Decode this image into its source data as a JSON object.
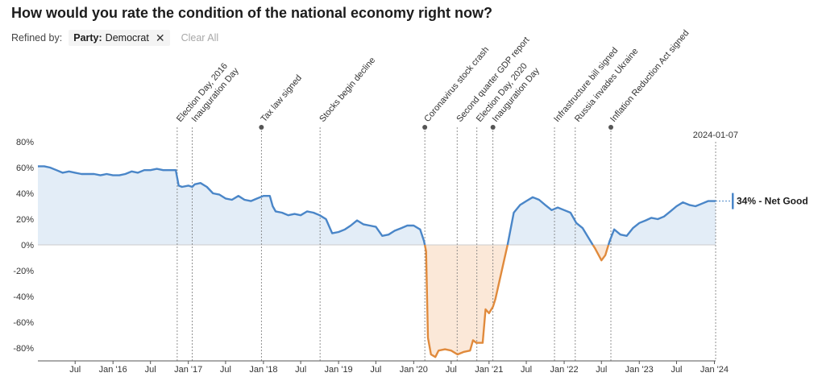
{
  "page": {
    "title": "How would you rate the condition of the national economy right now?",
    "filter": {
      "refined_by_label": "Refined by:",
      "chip_key": "Party:",
      "chip_value": "Democrat",
      "clear_label": "Clear All"
    }
  },
  "chart_data": {
    "type": "area",
    "ylim": [
      -90,
      90
    ],
    "yticks": [
      80,
      60,
      40,
      20,
      0,
      -20,
      -40,
      -60,
      -80
    ],
    "ytick_labels": [
      "80%",
      "60%",
      "40%",
      "20%",
      "0%",
      "-20%",
      "-40%",
      "-60%",
      "-80%"
    ],
    "x_start": "2015-01-01",
    "x_end": "2024-01-07",
    "xticks": [
      {
        "date": "2015-07-01",
        "label": "Jul"
      },
      {
        "date": "2016-01-01",
        "label": "Jan '16"
      },
      {
        "date": "2016-07-01",
        "label": "Jul"
      },
      {
        "date": "2017-01-01",
        "label": "Jan '17"
      },
      {
        "date": "2017-07-01",
        "label": "Jul"
      },
      {
        "date": "2018-01-01",
        "label": "Jan '18"
      },
      {
        "date": "2018-07-01",
        "label": "Jul"
      },
      {
        "date": "2019-01-01",
        "label": "Jan '19"
      },
      {
        "date": "2019-07-01",
        "label": "Jul"
      },
      {
        "date": "2020-01-01",
        "label": "Jan '20"
      },
      {
        "date": "2020-07-01",
        "label": "Jul"
      },
      {
        "date": "2021-01-01",
        "label": "Jan '21"
      },
      {
        "date": "2021-07-01",
        "label": "Jul"
      },
      {
        "date": "2022-01-01",
        "label": "Jan '22"
      },
      {
        "date": "2022-07-01",
        "label": "Jul"
      },
      {
        "date": "2023-01-01",
        "label": "Jan '23"
      },
      {
        "date": "2023-07-01",
        "label": "Jul"
      },
      {
        "date": "2024-01-01",
        "label": "Jan '24"
      }
    ],
    "colors": {
      "positive_line": "#4a86c8",
      "positive_fill": "#e3edf7",
      "negative_line": "#e08a3c",
      "negative_fill": "#fbe8d8",
      "zero_line": "#cccccc",
      "event_line": "#777777"
    },
    "events": [
      {
        "date": "2016-11-08",
        "label": "Election Day, 2016",
        "marker": false
      },
      {
        "date": "2017-01-20",
        "label": "Inauguration Day",
        "marker": false
      },
      {
        "date": "2017-12-22",
        "label": "Tax law signed",
        "marker": true
      },
      {
        "date": "2018-10-03",
        "label": "Stocks begin decline",
        "marker": false
      },
      {
        "date": "2020-02-24",
        "label": "Coronavirus stock crash",
        "marker": true
      },
      {
        "date": "2020-07-30",
        "label": "Second quarter GDP report",
        "marker": false
      },
      {
        "date": "2020-11-03",
        "label": "Election Day, 2020",
        "marker": false
      },
      {
        "date": "2021-01-20",
        "label": "Inauguration Day",
        "marker": true
      },
      {
        "date": "2021-11-15",
        "label": "Infrastructure bill signed",
        "marker": false
      },
      {
        "date": "2022-02-24",
        "label": "Russia invades Ukraine",
        "marker": false
      },
      {
        "date": "2022-08-16",
        "label": "Inflation Reduction Act signed",
        "marker": true
      }
    ],
    "end_marker": {
      "date": "2024-01-07",
      "label": "2024-01-07"
    },
    "callout": {
      "value": 34,
      "label": "34% - Net Good"
    },
    "series": [
      {
        "points": [
          [
            "2015-01-01",
            61
          ],
          [
            "2015-02-01",
            61
          ],
          [
            "2015-03-01",
            60
          ],
          [
            "2015-04-01",
            58
          ],
          [
            "2015-05-01",
            56
          ],
          [
            "2015-06-01",
            57
          ],
          [
            "2015-07-01",
            56
          ],
          [
            "2015-08-01",
            55
          ],
          [
            "2015-09-01",
            55
          ],
          [
            "2015-10-01",
            55
          ],
          [
            "2015-11-01",
            54
          ],
          [
            "2015-12-01",
            55
          ],
          [
            "2016-01-01",
            54
          ],
          [
            "2016-02-01",
            54
          ],
          [
            "2016-03-01",
            55
          ],
          [
            "2016-04-01",
            57
          ],
          [
            "2016-05-01",
            56
          ],
          [
            "2016-06-01",
            58
          ],
          [
            "2016-07-01",
            58
          ],
          [
            "2016-08-01",
            59
          ],
          [
            "2016-09-01",
            58
          ],
          [
            "2016-10-01",
            58
          ],
          [
            "2016-11-01",
            58
          ],
          [
            "2016-11-15",
            46
          ],
          [
            "2016-12-01",
            45
          ],
          [
            "2017-01-01",
            46
          ],
          [
            "2017-01-20",
            45
          ],
          [
            "2017-02-01",
            47
          ],
          [
            "2017-03-01",
            48
          ],
          [
            "2017-04-01",
            45
          ],
          [
            "2017-05-01",
            40
          ],
          [
            "2017-06-01",
            39
          ],
          [
            "2017-07-01",
            36
          ],
          [
            "2017-08-01",
            35
          ],
          [
            "2017-09-01",
            38
          ],
          [
            "2017-10-01",
            35
          ],
          [
            "2017-11-01",
            34
          ],
          [
            "2017-12-01",
            36
          ],
          [
            "2018-01-01",
            38
          ],
          [
            "2018-02-01",
            38
          ],
          [
            "2018-02-15",
            30
          ],
          [
            "2018-03-01",
            26
          ],
          [
            "2018-04-01",
            25
          ],
          [
            "2018-05-01",
            23
          ],
          [
            "2018-06-01",
            24
          ],
          [
            "2018-07-01",
            23
          ],
          [
            "2018-08-01",
            26
          ],
          [
            "2018-09-01",
            25
          ],
          [
            "2018-10-01",
            23
          ],
          [
            "2018-11-01",
            20
          ],
          [
            "2018-12-01",
            9
          ],
          [
            "2019-01-01",
            10
          ],
          [
            "2019-02-01",
            12
          ],
          [
            "2019-03-01",
            15
          ],
          [
            "2019-04-01",
            19
          ],
          [
            "2019-05-01",
            16
          ],
          [
            "2019-06-01",
            15
          ],
          [
            "2019-07-01",
            14
          ],
          [
            "2019-08-01",
            7
          ],
          [
            "2019-09-01",
            8
          ],
          [
            "2019-10-01",
            11
          ],
          [
            "2019-11-01",
            13
          ],
          [
            "2019-12-01",
            15
          ],
          [
            "2020-01-01",
            15
          ],
          [
            "2020-02-01",
            12
          ],
          [
            "2020-02-20",
            3
          ],
          [
            "2020-03-01",
            -5
          ],
          [
            "2020-03-10",
            -72
          ],
          [
            "2020-03-25",
            -85
          ],
          [
            "2020-04-15",
            -87
          ],
          [
            "2020-05-01",
            -82
          ],
          [
            "2020-06-01",
            -81
          ],
          [
            "2020-07-01",
            -82
          ],
          [
            "2020-08-01",
            -85
          ],
          [
            "2020-09-01",
            -83
          ],
          [
            "2020-10-01",
            -82
          ],
          [
            "2020-10-15",
            -74
          ],
          [
            "2020-11-01",
            -76
          ],
          [
            "2020-12-01",
            -76
          ],
          [
            "2020-12-15",
            -50
          ],
          [
            "2021-01-01",
            -53
          ],
          [
            "2021-01-20",
            -48
          ],
          [
            "2021-02-01",
            -42
          ],
          [
            "2021-03-01",
            -22
          ],
          [
            "2021-04-01",
            0
          ],
          [
            "2021-05-01",
            25
          ],
          [
            "2021-06-01",
            31
          ],
          [
            "2021-07-01",
            34
          ],
          [
            "2021-08-01",
            37
          ],
          [
            "2021-09-01",
            35
          ],
          [
            "2021-10-01",
            31
          ],
          [
            "2021-11-01",
            27
          ],
          [
            "2021-12-01",
            29
          ],
          [
            "2022-01-01",
            27
          ],
          [
            "2022-02-01",
            25
          ],
          [
            "2022-03-01",
            17
          ],
          [
            "2022-04-01",
            13
          ],
          [
            "2022-05-01",
            5
          ],
          [
            "2022-06-01",
            -3
          ],
          [
            "2022-07-01",
            -12
          ],
          [
            "2022-07-20",
            -8
          ],
          [
            "2022-08-10",
            3
          ],
          [
            "2022-09-01",
            12
          ],
          [
            "2022-10-01",
            8
          ],
          [
            "2022-11-01",
            7
          ],
          [
            "2022-12-01",
            13
          ],
          [
            "2023-01-01",
            17
          ],
          [
            "2023-02-01",
            19
          ],
          [
            "2023-03-01",
            21
          ],
          [
            "2023-04-01",
            20
          ],
          [
            "2023-05-01",
            22
          ],
          [
            "2023-06-01",
            26
          ],
          [
            "2023-07-01",
            30
          ],
          [
            "2023-08-01",
            33
          ],
          [
            "2023-09-01",
            31
          ],
          [
            "2023-10-01",
            30
          ],
          [
            "2023-11-01",
            32
          ],
          [
            "2023-12-01",
            34
          ],
          [
            "2024-01-07",
            34
          ]
        ]
      }
    ]
  }
}
